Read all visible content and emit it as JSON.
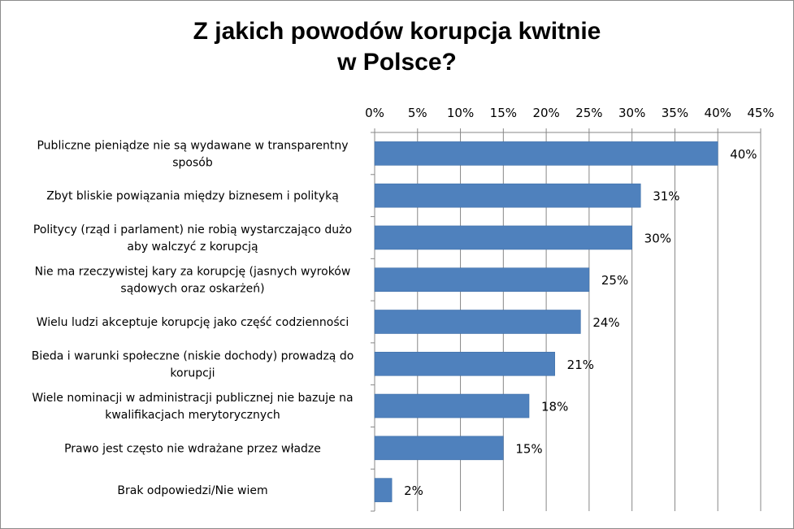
{
  "chart_data": {
    "type": "bar",
    "orientation": "horizontal",
    "title_lines": [
      "Z jakich powodów korupcja kwitnie",
      "w Polsce?"
    ],
    "xlim": [
      0,
      45
    ],
    "x_ticks": [
      "0%",
      "5%",
      "10%",
      "15%",
      "20%",
      "25%",
      "30%",
      "35%",
      "40%",
      "45%"
    ],
    "x_axis_position": "top",
    "grid": true,
    "bar_color": "#4f81bd",
    "categories": [
      [
        "Publiczne pieniądze nie są wydawane w transparentny",
        "sposób"
      ],
      [
        "Zbyt bliskie powiązania między biznesem i polityką"
      ],
      [
        "Politycy (rząd i parlament) nie robią wystarczająco dużo",
        "aby walczyć z korupcją"
      ],
      [
        "Nie ma rzeczywistej kary za korupcję (jasnych wyroków",
        "sądowych oraz oskarżeń)"
      ],
      [
        "Wielu ludzi akceptuje korupcję jako część codzienności"
      ],
      [
        "Bieda i warunki społeczne (niskie dochody) prowadzą do",
        "korupcji"
      ],
      [
        "Wiele nominacji w administracji publicznej nie bazuje na",
        "kwalifikacjach merytorycznych"
      ],
      [
        "Prawo jest często nie wdrażane przez władze"
      ],
      [
        "Brak odpowiedzi/Nie wiem"
      ]
    ],
    "values": [
      40,
      31,
      30,
      25,
      24,
      21,
      18,
      15,
      2
    ],
    "data_labels": [
      "40%",
      "31%",
      "30%",
      "25%",
      "24%",
      "21%",
      "18%",
      "15%",
      "2%"
    ]
  }
}
